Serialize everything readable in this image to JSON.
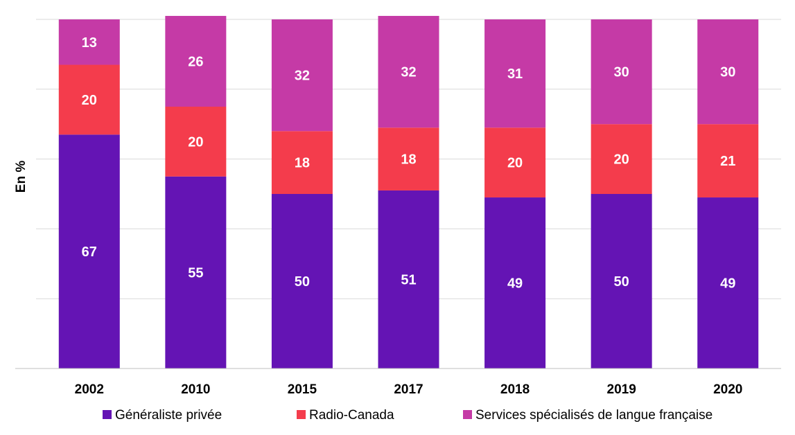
{
  "chart_data": {
    "type": "bar",
    "stacked": true,
    "categories": [
      "2002",
      "2010",
      "2015",
      "2017",
      "2018",
      "2019",
      "2020"
    ],
    "series": [
      {
        "name": "Généraliste privée",
        "color": "#6414b4",
        "values": [
          67,
          55,
          50,
          51,
          49,
          50,
          49
        ]
      },
      {
        "name": "Radio-Canada",
        "color": "#f43c4c",
        "values": [
          20,
          20,
          18,
          18,
          20,
          20,
          21
        ]
      },
      {
        "name": "Services spécialisés de langue française",
        "color": "#c53aa6",
        "values": [
          13,
          26,
          32,
          32,
          31,
          30,
          30
        ]
      }
    ],
    "ylabel": "En %",
    "ylim": [
      0,
      100
    ],
    "grid": true,
    "legend": "bottom",
    "data_labels": true
  }
}
